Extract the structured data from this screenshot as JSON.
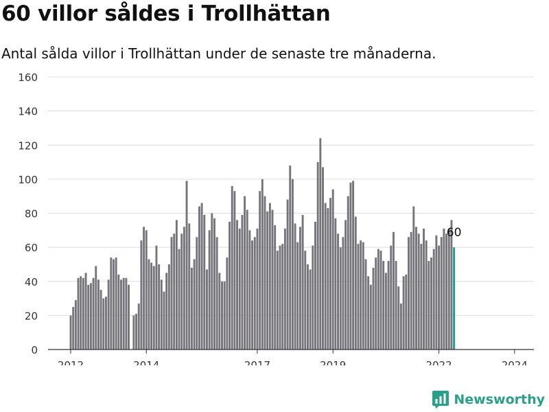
{
  "header": {
    "title": "60 villor såldes i Trollhättan",
    "subtitle": "Antal sålda villor i Trollhättan under de senaste tre månaderna."
  },
  "brand": {
    "name": "Newsworthy"
  },
  "colors": {
    "bar": "#76747b",
    "highlight": "#1f9c8c",
    "grid": "#dcdcdc",
    "brand": "#2aa08b"
  },
  "chart_data": {
    "type": "bar",
    "title": "60 villor såldes i Trollhättan",
    "subtitle": "Antal sålda villor i Trollhättan under de senaste tre månaderna.",
    "xlabel": "",
    "ylabel": "",
    "ylim": [
      0,
      160
    ],
    "y_ticks": [
      0,
      20,
      40,
      60,
      80,
      100,
      120,
      140,
      160
    ],
    "x_ticks": [
      {
        "index": 0,
        "label": "2012"
      },
      {
        "index": 30,
        "label": "2014"
      },
      {
        "index": 74,
        "label": "2017"
      },
      {
        "index": 104,
        "label": "2019"
      },
      {
        "index": 146,
        "label": "2022"
      },
      {
        "index": 176,
        "label": "2024"
      }
    ],
    "grid": "horizontal",
    "highlight_last": true,
    "last_value_label": "60",
    "values": [
      20,
      25,
      29,
      42,
      43,
      42,
      45,
      38,
      39,
      42,
      49,
      41,
      35,
      30,
      31,
      41,
      54,
      53,
      54,
      44,
      41,
      42,
      42,
      38,
      0,
      20,
      21,
      27,
      64,
      72,
      70,
      53,
      51,
      49,
      61,
      50,
      41,
      34,
      45,
      50,
      66,
      68,
      76,
      59,
      68,
      72,
      99,
      74,
      48,
      53,
      66,
      84,
      86,
      79,
      47,
      70,
      80,
      77,
      66,
      45,
      40,
      40,
      54,
      75,
      96,
      93,
      76,
      71,
      79,
      90,
      82,
      70,
      64,
      66,
      71,
      93,
      100,
      90,
      81,
      86,
      82,
      73,
      58,
      61,
      62,
      71,
      88,
      108,
      100,
      74,
      63,
      72,
      79,
      58,
      50,
      47,
      61,
      75,
      110,
      124,
      107,
      86,
      83,
      89,
      94,
      77,
      68,
      60,
      66,
      76,
      90,
      98,
      99,
      78,
      62,
      64,
      63,
      53,
      43,
      38,
      48,
      54,
      59,
      58,
      52,
      45,
      52,
      61,
      69,
      52,
      37,
      27,
      43,
      44,
      66,
      69,
      84,
      72,
      68,
      62,
      71,
      64,
      52,
      54,
      59,
      67,
      61,
      66,
      71,
      68,
      71,
      76,
      60
    ]
  }
}
